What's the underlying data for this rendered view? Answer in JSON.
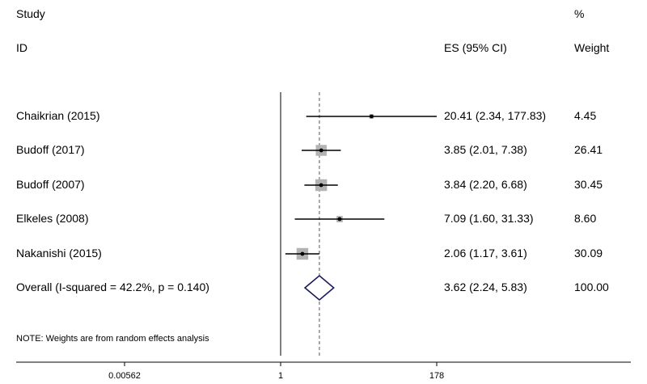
{
  "header": {
    "col1_line1": "Study",
    "col1_line2": "ID",
    "col3_line2": "ES (95% CI)",
    "col4_line1": "%",
    "col4_line2": "Weight"
  },
  "note": "NOTE: Weights are from random effects analysis",
  "chart_data": {
    "type": "forest",
    "x_scale": "log",
    "null_line": 1,
    "overall_line": 3.62,
    "x_ticks": [
      {
        "value": 0.00562,
        "label": "0.00562"
      },
      {
        "value": 1,
        "label": "1"
      },
      {
        "value": 178,
        "label": "178"
      }
    ],
    "studies": [
      {
        "id": "Chaikrian (2015)",
        "es": 20.41,
        "lo": 2.34,
        "hi": 177.83,
        "es_label": "20.41 (2.34, 177.83)",
        "weight": 4.45,
        "weight_label": "4.45"
      },
      {
        "id": "Budoff (2017)",
        "es": 3.85,
        "lo": 2.01,
        "hi": 7.38,
        "es_label": "3.85 (2.01, 7.38)",
        "weight": 26.41,
        "weight_label": "26.41"
      },
      {
        "id": "Budoff (2007)",
        "es": 3.84,
        "lo": 2.2,
        "hi": 6.68,
        "es_label": "3.84 (2.20, 6.68)",
        "weight": 30.45,
        "weight_label": "30.45"
      },
      {
        "id": "Elkeles (2008)",
        "es": 7.09,
        "lo": 1.6,
        "hi": 31.33,
        "es_label": "7.09 (1.60, 31.33)",
        "weight": 8.6,
        "weight_label": "8.60"
      },
      {
        "id": "Nakanishi (2015)",
        "es": 2.06,
        "lo": 1.17,
        "hi": 3.61,
        "es_label": "2.06 (1.17, 3.61)",
        "weight": 30.09,
        "weight_label": "30.09"
      }
    ],
    "overall": {
      "id": "Overall  (I-squared = 42.2%, p = 0.140)",
      "es": 3.62,
      "lo": 2.24,
      "hi": 5.83,
      "es_label": "3.62 (2.24, 5.83)",
      "weight_label": "100.00"
    },
    "colors": {
      "line": "#000000",
      "box": "#b3b3b3",
      "diamond": "#1a1a5e",
      "ref": "#555555"
    }
  }
}
